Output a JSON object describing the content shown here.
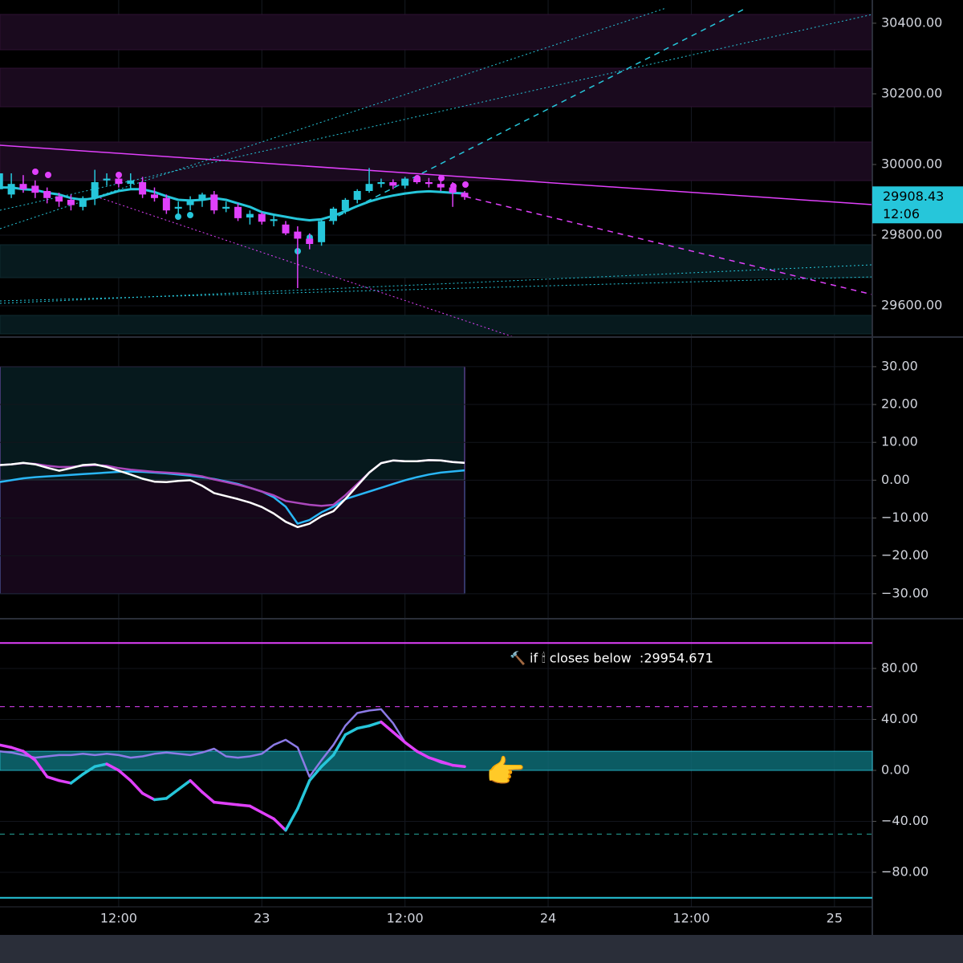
{
  "chart_data": {
    "type": "candlestick",
    "categories": [
      null,
      null,
      null,
      null,
      null,
      null,
      null,
      null,
      null,
      null,
      "12:00",
      null,
      null,
      null,
      null,
      null,
      null,
      null,
      null,
      null,
      null,
      null,
      "23",
      null,
      null,
      null,
      null,
      null,
      null,
      null,
      null,
      null,
      null,
      null,
      "12:00",
      null,
      null,
      null,
      null,
      null,
      null,
      null,
      null,
      null,
      null,
      null,
      "24",
      null,
      null,
      null,
      null,
      null,
      null,
      null,
      null,
      null,
      null,
      null,
      "12:00",
      null,
      null,
      null,
      null,
      null,
      null,
      null,
      null,
      null,
      null,
      null,
      "25",
      null,
      null
    ],
    "open": [
      29930,
      29915,
      29945,
      29940,
      29925,
      29910,
      29900,
      29880,
      29905,
      29955,
      29960,
      29945,
      29950,
      29915,
      29905,
      29875,
      29885,
      29900,
      29915,
      29875,
      29880,
      29850,
      29860,
      29840,
      29830,
      29810,
      29790,
      29780,
      29840,
      29870,
      29900,
      29925,
      29945,
      29950,
      29940,
      29960,
      29950,
      29945,
      29935,
      29920,
      null,
      null,
      null,
      null,
      null,
      null,
      null,
      null,
      null,
      null,
      null,
      null,
      null,
      null,
      null,
      null,
      null,
      null,
      null,
      null,
      null,
      null,
      null,
      null,
      null,
      null,
      null,
      null,
      null,
      null,
      null,
      null,
      null
    ],
    "high": [
      29985,
      29975,
      29970,
      29955,
      29935,
      29920,
      29915,
      29910,
      29985,
      29975,
      29970,
      29975,
      29965,
      29935,
      29915,
      29895,
      29910,
      29920,
      29925,
      29895,
      29890,
      29870,
      29865,
      29855,
      29840,
      29825,
      29805,
      29845,
      29880,
      29905,
      29930,
      29990,
      29960,
      29958,
      29965,
      29970,
      29962,
      29960,
      29950,
      29925,
      null,
      null,
      null,
      null,
      null,
      null,
      null,
      null,
      null,
      null,
      null,
      null,
      null,
      null,
      null,
      null,
      null,
      null,
      null,
      null,
      null,
      null,
      null,
      null,
      null,
      null,
      null,
      null,
      null,
      null,
      null,
      null,
      null
    ],
    "low": [
      29910,
      29905,
      29920,
      29905,
      29890,
      29880,
      29870,
      29870,
      29885,
      29940,
      29935,
      29930,
      29905,
      29895,
      29860,
      29860,
      29870,
      29880,
      29860,
      29865,
      29840,
      29830,
      29830,
      29825,
      29800,
      29650,
      29760,
      29770,
      29830,
      29860,
      29890,
      29920,
      29935,
      29930,
      29932,
      29945,
      29935,
      29925,
      29880,
      29900,
      null,
      null,
      null,
      null,
      null,
      null,
      null,
      null,
      null,
      null,
      null,
      null,
      null,
      null,
      null,
      null,
      null,
      null,
      null,
      null,
      null,
      null,
      null,
      null,
      null,
      null,
      null,
      null,
      null,
      null,
      null,
      null,
      null
    ],
    "close": [
      29975,
      29945,
      29930,
      29920,
      29905,
      29895,
      29885,
      29905,
      29950,
      29960,
      29945,
      29955,
      29915,
      29905,
      29870,
      29880,
      29900,
      29915,
      29870,
      29880,
      29848,
      29860,
      29838,
      29845,
      29805,
      29790,
      29775,
      29840,
      29875,
      29900,
      29925,
      29945,
      29950,
      29940,
      29960,
      29950,
      29945,
      29935,
      29920,
      29908,
      null,
      null,
      null,
      null,
      null,
      null,
      null,
      null,
      null,
      null,
      null,
      null,
      null,
      null,
      null,
      null,
      null,
      null,
      null,
      null,
      null,
      null,
      null,
      null,
      null,
      null,
      null,
      null,
      null,
      null,
      null,
      null,
      null
    ],
    "ma": [
      29935,
      29935,
      29930,
      29928,
      29920,
      29915,
      29905,
      29900,
      29905,
      29915,
      29925,
      29930,
      29930,
      29922,
      29910,
      29900,
      29898,
      29900,
      29905,
      29900,
      29890,
      29880,
      29865,
      29858,
      29852,
      29846,
      29842,
      29845,
      29855,
      29868,
      29882,
      29895,
      29905,
      29912,
      29918,
      29922,
      29924,
      29922,
      29920,
      29918,
      null,
      null,
      null,
      null,
      null,
      null,
      null,
      null,
      null,
      null,
      null,
      null,
      null,
      null,
      null,
      null,
      null,
      null,
      null,
      null,
      null,
      null,
      null,
      null,
      null,
      null,
      null,
      null,
      null,
      null,
      null,
      null,
      null
    ],
    "color_up": "#26c6da",
    "color_down": "#e040fb",
    "ma_color": "#26c6da",
    "ylim": [
      29516,
      30443
    ],
    "yticks": [
      {
        "value": 29600,
        "label": "29600.00"
      },
      {
        "value": 29800,
        "label": "29800.00"
      },
      {
        "value": 30000,
        "label": "30000.00"
      },
      {
        "value": 30200,
        "label": "30200.00"
      },
      {
        "value": 30400,
        "label": "30400.00"
      }
    ],
    "price_label": {
      "value": 29908.43,
      "countdown": "12:06"
    },
    "panes": [
      {
        "type": "line",
        "ylim": [
          -36.4,
          37.4
        ],
        "yticks": [
          {
            "value": 30,
            "label": "30.00"
          },
          {
            "value": 20,
            "label": "20.00"
          },
          {
            "value": 10,
            "label": "10.00"
          },
          {
            "value": 0,
            "label": "0.00"
          },
          {
            "value": -10,
            "label": "−10.00"
          },
          {
            "value": -20,
            "label": "−20.00"
          },
          {
            "value": -30,
            "label": "−30.00"
          }
        ],
        "series": [
          {
            "color": "#29b6f6",
            "values": [
              -0.5,
              0.0,
              0.5,
              0.8,
              1.0,
              1.2,
              1.4,
              1.6,
              1.8,
              2.0,
              2.2,
              2.3,
              2.2,
              2.0,
              1.8,
              1.5,
              1.2,
              0.8,
              0.3,
              -0.3,
              -1.0,
              -2.0,
              -3.0,
              -4.5,
              -7.0,
              -11.5,
              -10.5,
              -8.5,
              -7.0,
              -5.0,
              -4.0,
              -3.0,
              -2.0,
              -1.0,
              0.0,
              0.8,
              1.5,
              2.0,
              2.3,
              2.6,
              null,
              null,
              null,
              null,
              null,
              null,
              null,
              null,
              null,
              null,
              null,
              null,
              null,
              null,
              null,
              null,
              null,
              null,
              null,
              null,
              null,
              null,
              null,
              null,
              null,
              null,
              null,
              null,
              null,
              null,
              null,
              null,
              null
            ]
          },
          {
            "color": "#ab47bc",
            "values": [
              4.0,
              4.2,
              4.5,
              4.3,
              3.8,
              3.5,
              3.5,
              3.8,
              4.0,
              3.8,
              3.2,
              2.8,
              2.5,
              2.2,
              2.0,
              1.8,
              1.5,
              1.0,
              0.2,
              -0.5,
              -1.2,
              -2.0,
              -3.0,
              -4.0,
              -5.5,
              -6.0,
              -6.5,
              -6.8,
              -6.5,
              -4.0,
              -1.0,
              2.0,
              4.5,
              5.2,
              5.0,
              5.0,
              5.3,
              5.2,
              4.8,
              4.6,
              null,
              null,
              null,
              null,
              null,
              null,
              null,
              null,
              null,
              null,
              null,
              null,
              null,
              null,
              null,
              null,
              null,
              null,
              null,
              null,
              null,
              null,
              null,
              null,
              null,
              null,
              null,
              null,
              null,
              null,
              null,
              null,
              null
            ]
          },
          {
            "color": "#ffffff",
            "values": [
              4.0,
              4.2,
              4.6,
              4.2,
              3.3,
              2.5,
              3.2,
              4.0,
              4.2,
              3.5,
              2.5,
              1.5,
              0.4,
              -0.4,
              -0.5,
              -0.2,
              0.0,
              -1.5,
              -3.4,
              -4.2,
              -5.0,
              -5.9,
              -7.1,
              -8.8,
              -11.0,
              -12.4,
              -11.5,
              -9.5,
              -8.2,
              -5.0,
              -1.5,
              2.0,
              4.5,
              5.2,
              5.0,
              5.0,
              5.3,
              5.2,
              4.8,
              4.6,
              null,
              null,
              null,
              null,
              null,
              null,
              null,
              null,
              null,
              null,
              null,
              null,
              null,
              null,
              null,
              null,
              null,
              null,
              null,
              null,
              null,
              null,
              null,
              null,
              null,
              null,
              null,
              null,
              null,
              null,
              null,
              null,
              null
            ]
          }
        ]
      },
      {
        "type": "line",
        "ylim": [
          -107.1,
          118.4
        ],
        "yticks": [
          {
            "value": 80,
            "label": "80.00"
          },
          {
            "value": 40,
            "label": "40.00"
          },
          {
            "value": 0,
            "label": "0.00"
          },
          {
            "value": -40,
            "label": "−40.00"
          },
          {
            "value": -80,
            "label": "−80.00"
          }
        ],
        "levels": [
          100,
          50,
          -50,
          -100
        ],
        "level_colors": [
          "#e040fb",
          "#e040fb",
          "#26a69a",
          "#26c6da"
        ],
        "band": [
          0,
          15
        ],
        "band_color": "#0e6b75",
        "series": [
          {
            "color": "#8c7ae6",
            "values": [
              15,
              14,
              12,
              10,
              11,
              12,
              12,
              13,
              12,
              13,
              12,
              10,
              11,
              13,
              14,
              13,
              12,
              14,
              17,
              11,
              10,
              11,
              13,
              20,
              24,
              18,
              -5,
              8,
              20,
              35,
              45,
              47,
              48,
              37,
              22,
              15,
              10,
              6,
              4,
              3,
              null,
              null,
              null,
              null,
              null,
              null,
              null,
              null,
              null,
              null,
              null,
              null,
              null,
              null,
              null,
              null,
              null,
              null,
              null,
              null,
              null,
              null,
              null,
              null,
              null,
              null,
              null,
              null,
              null,
              null,
              null,
              null,
              null
            ]
          },
          {
            "color": "#e040fb",
            "up_color": "#26c6da",
            "values": [
              20,
              18,
              15,
              8,
              -5,
              -8,
              -10,
              -3,
              3,
              5,
              0,
              -8,
              -18,
              -23,
              -22,
              -15,
              -8,
              -17,
              -25,
              -26,
              -27,
              -28,
              -33,
              -38,
              -47,
              -30,
              -8,
              3,
              12,
              28,
              33,
              35,
              38,
              30,
              22,
              15,
              10,
              7,
              4,
              3,
              null,
              null,
              null,
              null,
              null,
              null,
              null,
              null,
              null,
              null,
              null,
              null,
              null,
              null,
              null,
              null,
              null,
              null,
              null,
              null,
              null,
              null,
              null,
              null,
              null,
              null,
              null,
              null,
              null,
              null,
              null,
              null,
              null
            ]
          }
        ],
        "annotation": "🔨 if 🕯 closes below  :29954.671",
        "pointer": "👉"
      }
    ]
  }
}
